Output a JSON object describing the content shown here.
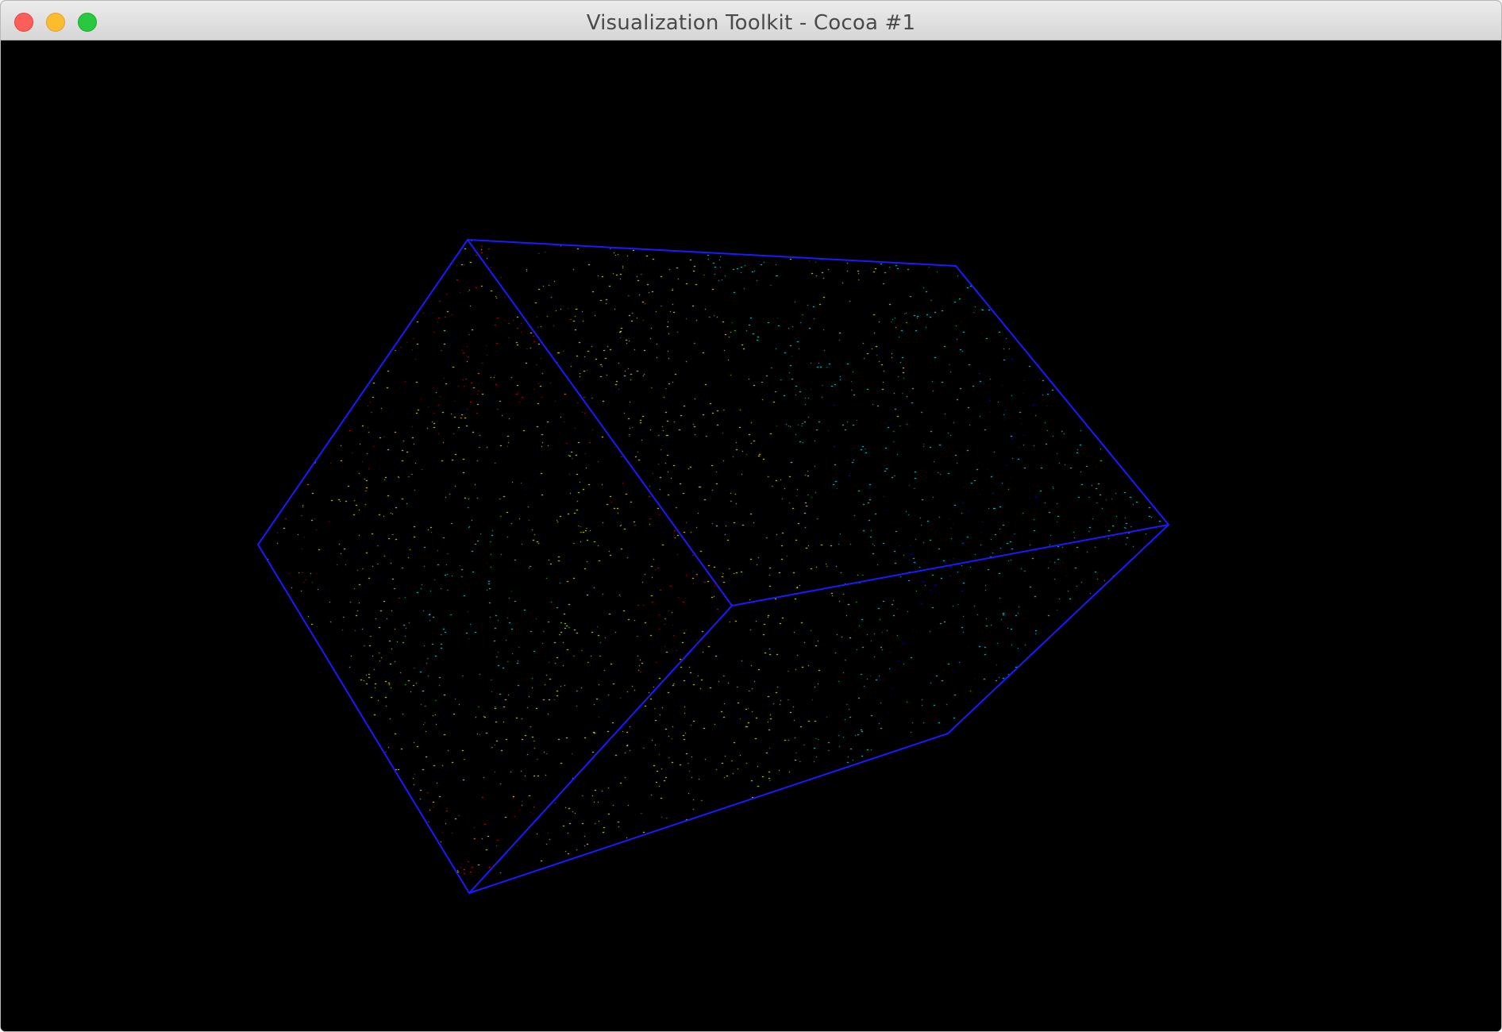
{
  "window": {
    "title": "Visualization Toolkit - Cocoa #1"
  },
  "colors": {
    "background": "#000000",
    "outline": "#1a1aff",
    "traffic_close": "#fc5f57",
    "traffic_minimize": "#fdbc2e",
    "traffic_zoom": "#28c840"
  },
  "icons": {
    "close": "close-icon",
    "minimize": "minimize-icon",
    "zoom": "zoom-icon"
  },
  "scene": {
    "content": "point-cloud-colored-by-scalar",
    "colormap": "rainbow",
    "outline": "cube-outline"
  }
}
